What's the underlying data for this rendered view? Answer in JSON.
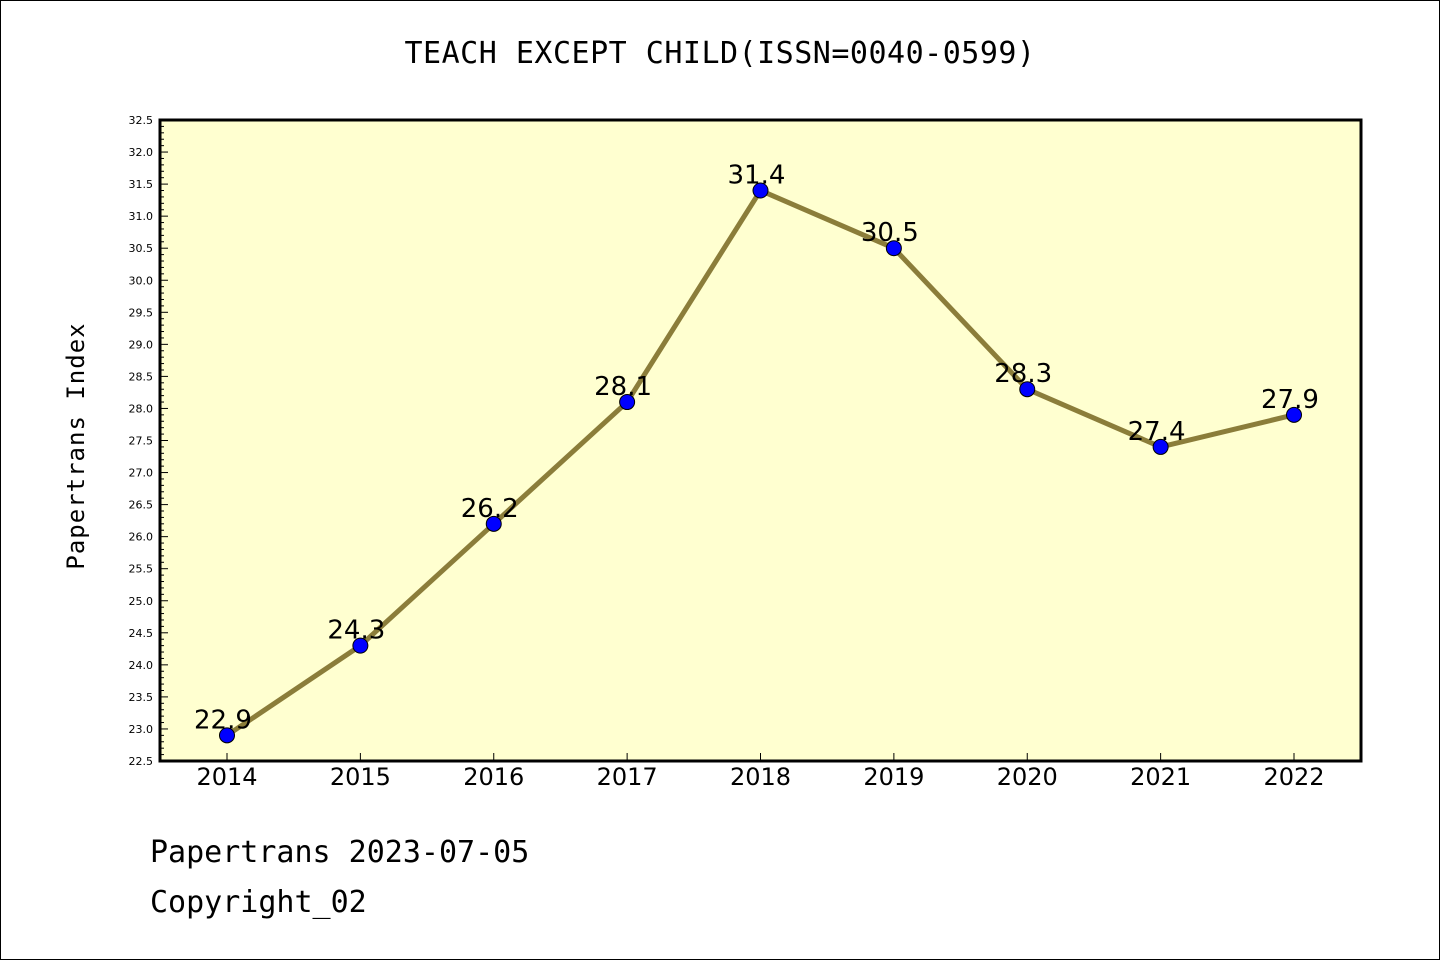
{
  "footer": {
    "date_line": "Papertrans 2023-07-05",
    "copyright": "Copyright_02"
  },
  "chart_data": {
    "type": "line",
    "title": "TEACH EXCEPT CHILD(ISSN=0040-0599)",
    "xlabel": "",
    "ylabel": "Papertrans Index",
    "categories": [
      "2014",
      "2015",
      "2016",
      "2017",
      "2018",
      "2019",
      "2020",
      "2021",
      "2022"
    ],
    "series": [
      {
        "values": [
          22.9,
          24.3,
          26.2,
          28.1,
          31.4,
          30.5,
          28.3,
          27.4,
          27.9
        ],
        "data_labels": [
          "22.9",
          "24.3",
          "26.2",
          "28.1",
          "31.4",
          "30.5",
          "28.3",
          "27.4",
          "27.9"
        ],
        "line_color": "#8b7d3a",
        "marker_color": "#0000ff"
      }
    ],
    "ylim": [
      22.5,
      32.5
    ],
    "y_ticks": [
      "22.5",
      "23.0",
      "23.5",
      "24.0",
      "24.5",
      "25.0",
      "25.5",
      "26.0",
      "26.5",
      "27.0",
      "27.5",
      "28.0",
      "28.5",
      "29.0",
      "29.5",
      "30.0",
      "30.5",
      "31.0",
      "31.5",
      "32.0",
      "32.5"
    ],
    "plot_background": "#ffffd0",
    "grid": false,
    "legend": "none"
  }
}
